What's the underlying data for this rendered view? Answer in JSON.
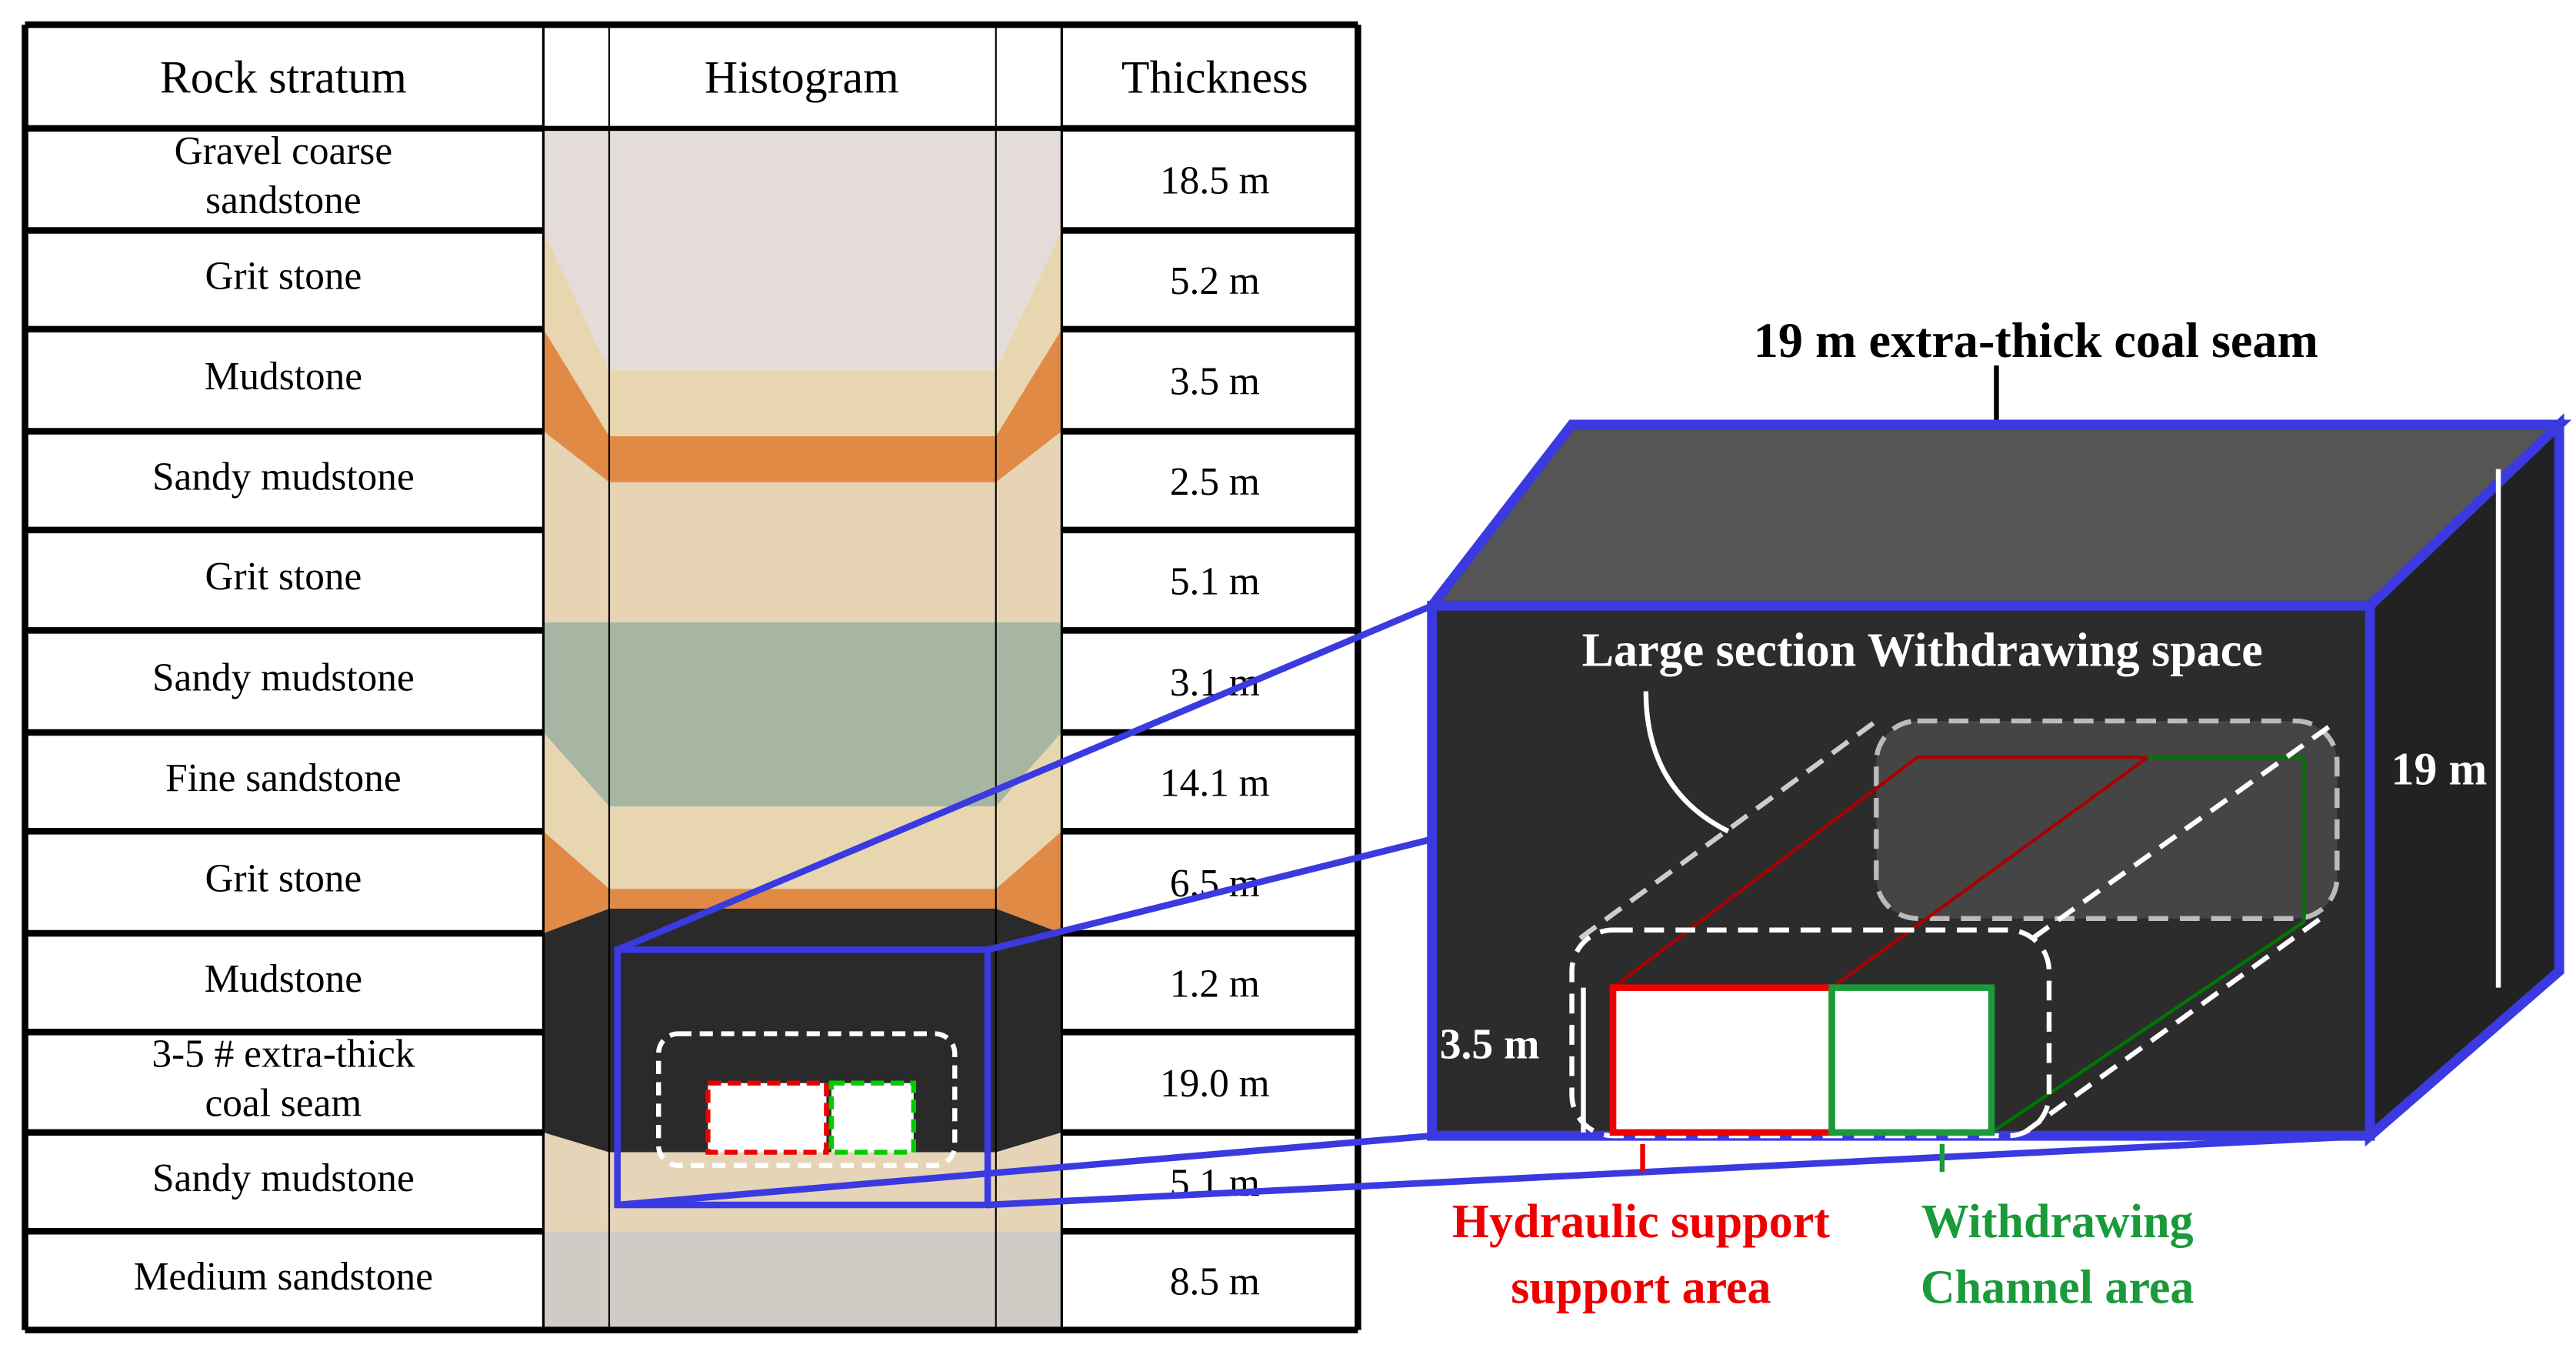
{
  "table": {
    "header": [
      "Rock stratum",
      "Histogram",
      "Thickness"
    ],
    "rows": [
      {
        "name": [
          "Gravel coarse",
          "sandstone"
        ],
        "thickness": "18.5 m"
      },
      {
        "name": [
          "Grit stone"
        ],
        "thickness": "5.2 m"
      },
      {
        "name": [
          "Mudstone"
        ],
        "thickness": "3.5 m"
      },
      {
        "name": [
          "Sandy mudstone"
        ],
        "thickness": "2.5 m"
      },
      {
        "name": [
          "Grit stone"
        ],
        "thickness": "5.1 m"
      },
      {
        "name": [
          "Sandy mudstone"
        ],
        "thickness": "3.1 m"
      },
      {
        "name": [
          "Fine sandstone"
        ],
        "thickness": "14.1 m"
      },
      {
        "name": [
          "Grit stone"
        ],
        "thickness": "6.5 m"
      },
      {
        "name": [
          "Mudstone"
        ],
        "thickness": "1.2 m"
      },
      {
        "name": [
          "3-5 # extra-thick",
          "coal seam"
        ],
        "thickness": "19.0 m"
      },
      {
        "name": [
          "Sandy mudstone"
        ],
        "thickness": "5.1 m"
      },
      {
        "name": [
          "Medium sandstone"
        ],
        "thickness": "8.5 m"
      }
    ]
  },
  "detail": {
    "title": "19 m extra-thick coal seam",
    "space_label": "Large section Withdrawing space",
    "height_label": "19 m",
    "support_height_label": "3.5 m",
    "hydraulic_label": [
      "Hydraulic support",
      "support area"
    ],
    "channel_label": [
      "Withdrawing",
      "Channel area"
    ]
  }
}
